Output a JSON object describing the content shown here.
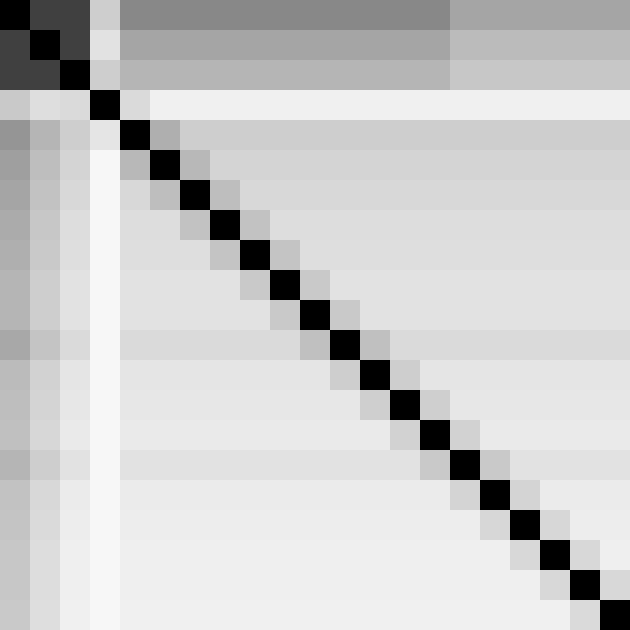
{
  "chart_data": {
    "type": "heatmap",
    "tick_labels": false,
    "value_range": [
      0,
      1
    ],
    "cells": [
      [
        1.0,
        0.8,
        0.8,
        0.3,
        0.55,
        0.55,
        0.55,
        0.55,
        0.55,
        0.55,
        0.55,
        0.55,
        0.55,
        0.55,
        0.55,
        0.45,
        0.45,
        0.45,
        0.45,
        0.45,
        0.45
      ],
      [
        0.8,
        1.0,
        0.8,
        0.2,
        0.45,
        0.45,
        0.45,
        0.45,
        0.45,
        0.45,
        0.45,
        0.45,
        0.45,
        0.45,
        0.45,
        0.38,
        0.38,
        0.38,
        0.38,
        0.38,
        0.38
      ],
      [
        0.8,
        0.8,
        1.0,
        0.3,
        0.4,
        0.4,
        0.4,
        0.4,
        0.4,
        0.4,
        0.4,
        0.4,
        0.4,
        0.4,
        0.4,
        0.33,
        0.33,
        0.33,
        0.33,
        0.33,
        0.33
      ],
      [
        0.32,
        0.22,
        0.24,
        1.0,
        0.24,
        0.12,
        0.12,
        0.12,
        0.12,
        0.12,
        0.12,
        0.12,
        0.12,
        0.12,
        0.12,
        0.12,
        0.12,
        0.12,
        0.12,
        0.12,
        0.12
      ],
      [
        0.5,
        0.4,
        0.3,
        0.18,
        1.0,
        0.42,
        0.3,
        0.3,
        0.3,
        0.3,
        0.3,
        0.3,
        0.3,
        0.3,
        0.3,
        0.3,
        0.3,
        0.3,
        0.3,
        0.3,
        0.3
      ],
      [
        0.47,
        0.37,
        0.27,
        0.06,
        0.39,
        1.0,
        0.39,
        0.27,
        0.27,
        0.27,
        0.27,
        0.27,
        0.27,
        0.27,
        0.27,
        0.27,
        0.27,
        0.27,
        0.27,
        0.27,
        0.27
      ],
      [
        0.45,
        0.35,
        0.25,
        0.06,
        0.25,
        0.37,
        1.0,
        0.37,
        0.25,
        0.25,
        0.25,
        0.25,
        0.25,
        0.25,
        0.25,
        0.25,
        0.25,
        0.25,
        0.25,
        0.25,
        0.25
      ],
      [
        0.43,
        0.33,
        0.23,
        0.06,
        0.23,
        0.23,
        0.35,
        1.0,
        0.35,
        0.23,
        0.23,
        0.23,
        0.23,
        0.23,
        0.23,
        0.23,
        0.23,
        0.23,
        0.23,
        0.23,
        0.23
      ],
      [
        0.42,
        0.32,
        0.22,
        0.06,
        0.22,
        0.22,
        0.22,
        0.34,
        1.0,
        0.34,
        0.22,
        0.22,
        0.22,
        0.22,
        0.22,
        0.22,
        0.22,
        0.22,
        0.22,
        0.22,
        0.22
      ],
      [
        0.4,
        0.3,
        0.2,
        0.06,
        0.2,
        0.2,
        0.2,
        0.2,
        0.32,
        1.0,
        0.32,
        0.2,
        0.2,
        0.2,
        0.2,
        0.2,
        0.2,
        0.2,
        0.2,
        0.2,
        0.2
      ],
      [
        0.4,
        0.3,
        0.2,
        0.06,
        0.2,
        0.2,
        0.2,
        0.2,
        0.2,
        0.32,
        1.0,
        0.32,
        0.2,
        0.2,
        0.2,
        0.2,
        0.2,
        0.2,
        0.2,
        0.2,
        0.2
      ],
      [
        0.44,
        0.34,
        0.24,
        0.06,
        0.24,
        0.24,
        0.24,
        0.24,
        0.24,
        0.24,
        0.36,
        1.0,
        0.36,
        0.24,
        0.24,
        0.24,
        0.24,
        0.24,
        0.24,
        0.24,
        0.24
      ],
      [
        0.38,
        0.28,
        0.18,
        0.06,
        0.18,
        0.18,
        0.18,
        0.18,
        0.18,
        0.18,
        0.18,
        0.3,
        1.0,
        0.3,
        0.18,
        0.18,
        0.18,
        0.18,
        0.18,
        0.18,
        0.18
      ],
      [
        0.37,
        0.27,
        0.17,
        0.06,
        0.17,
        0.17,
        0.17,
        0.17,
        0.17,
        0.17,
        0.17,
        0.17,
        0.29,
        1.0,
        0.29,
        0.17,
        0.17,
        0.17,
        0.17,
        0.17,
        0.17
      ],
      [
        0.36,
        0.26,
        0.16,
        0.06,
        0.16,
        0.16,
        0.16,
        0.16,
        0.16,
        0.16,
        0.16,
        0.16,
        0.16,
        0.28,
        1.0,
        0.28,
        0.16,
        0.16,
        0.16,
        0.16,
        0.16
      ],
      [
        0.4,
        0.3,
        0.2,
        0.06,
        0.2,
        0.2,
        0.2,
        0.2,
        0.2,
        0.2,
        0.2,
        0.2,
        0.2,
        0.2,
        0.32,
        1.0,
        0.32,
        0.2,
        0.2,
        0.2,
        0.2
      ],
      [
        0.35,
        0.25,
        0.15,
        0.06,
        0.15,
        0.15,
        0.15,
        0.15,
        0.15,
        0.15,
        0.15,
        0.15,
        0.15,
        0.15,
        0.15,
        0.27,
        1.0,
        0.27,
        0.15,
        0.15,
        0.15
      ],
      [
        0.34,
        0.24,
        0.14,
        0.06,
        0.14,
        0.14,
        0.14,
        0.14,
        0.14,
        0.14,
        0.14,
        0.14,
        0.14,
        0.14,
        0.14,
        0.14,
        0.26,
        1.0,
        0.26,
        0.14,
        0.14
      ],
      [
        0.33,
        0.23,
        0.13,
        0.06,
        0.13,
        0.13,
        0.13,
        0.13,
        0.13,
        0.13,
        0.13,
        0.13,
        0.13,
        0.13,
        0.13,
        0.13,
        0.13,
        0.25,
        1.0,
        0.25,
        0.13
      ],
      [
        0.33,
        0.23,
        0.13,
        0.06,
        0.13,
        0.13,
        0.13,
        0.13,
        0.13,
        0.13,
        0.13,
        0.13,
        0.13,
        0.13,
        0.13,
        0.13,
        0.13,
        0.13,
        0.25,
        1.0,
        0.25
      ],
      [
        0.32,
        0.22,
        0.12,
        0.06,
        0.12,
        0.12,
        0.12,
        0.12,
        0.12,
        0.12,
        0.12,
        0.12,
        0.12,
        0.12,
        0.12,
        0.12,
        0.12,
        0.12,
        0.12,
        0.24,
        1.0
      ]
    ]
  }
}
